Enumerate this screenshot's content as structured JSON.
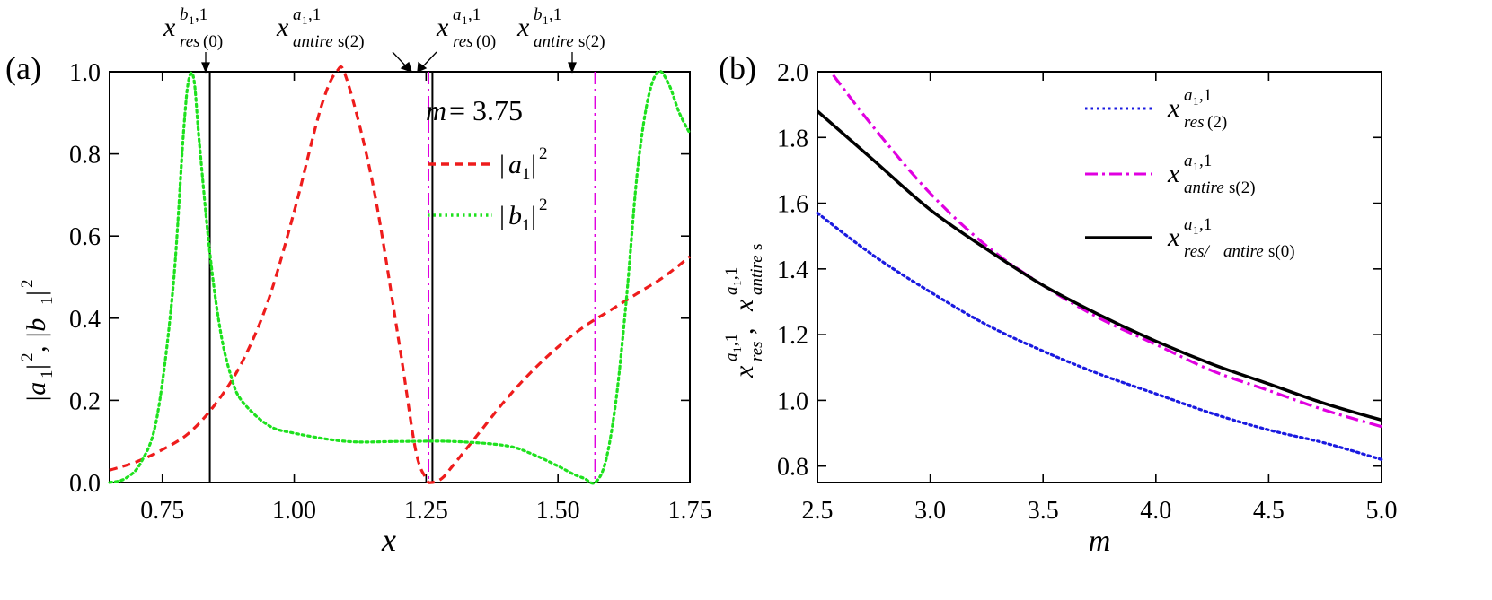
{
  "chart_data": [
    {
      "panel": "(a)",
      "type": "line",
      "xlabel": "x",
      "ylabel": "|a1|², |b1|²",
      "xlim": [
        0.65,
        1.75
      ],
      "ylim": [
        0.0,
        1.0
      ],
      "xticks": [
        "0.75",
        "1.00",
        "1.25",
        "1.50",
        "1.75"
      ],
      "yticks": [
        "0.0",
        "0.2",
        "0.4",
        "0.6",
        "0.8",
        "1.0"
      ],
      "grid": false,
      "legend_position": "top-right",
      "legend_title": "m = 3.75",
      "series": [
        {
          "name": "|a1|²",
          "style": "dashed",
          "color": "#ee1c1c",
          "x": [
            0.65,
            0.7,
            0.75,
            0.8,
            0.85,
            0.9,
            0.95,
            1.0,
            1.05,
            1.08,
            1.1,
            1.15,
            1.2,
            1.23,
            1.25,
            1.26,
            1.28,
            1.3,
            1.35,
            1.4,
            1.45,
            1.5,
            1.55,
            1.6,
            1.65,
            1.7,
            1.75
          ],
          "y": [
            0.03,
            0.05,
            0.08,
            0.12,
            0.19,
            0.29,
            0.44,
            0.66,
            0.91,
            1.0,
            0.98,
            0.72,
            0.33,
            0.08,
            0.01,
            0.0,
            0.01,
            0.04,
            0.12,
            0.2,
            0.27,
            0.33,
            0.38,
            0.42,
            0.46,
            0.5,
            0.55
          ]
        },
        {
          "name": "|b1|²",
          "style": "dotted",
          "color": "#1ee11e",
          "x": [
            0.65,
            0.68,
            0.71,
            0.74,
            0.77,
            0.79,
            0.8,
            0.81,
            0.82,
            0.84,
            0.86,
            0.88,
            0.9,
            0.95,
            1.0,
            1.1,
            1.2,
            1.3,
            1.4,
            1.45,
            1.5,
            1.53,
            1.55,
            1.57,
            1.59,
            1.61,
            1.63,
            1.65,
            1.67,
            1.69,
            1.71,
            1.73,
            1.75
          ],
          "y": [
            0.0,
            0.01,
            0.05,
            0.16,
            0.47,
            0.85,
            0.98,
            0.98,
            0.83,
            0.56,
            0.37,
            0.26,
            0.2,
            0.14,
            0.12,
            0.1,
            0.1,
            0.1,
            0.09,
            0.07,
            0.04,
            0.02,
            0.01,
            0.0,
            0.05,
            0.2,
            0.45,
            0.75,
            0.93,
            1.0,
            0.97,
            0.9,
            0.85
          ]
        }
      ],
      "markers": [
        {
          "name": "x_res(0)^{b1,1}",
          "x": 0.84,
          "color": "#000000",
          "style": "solid"
        },
        {
          "name": "x_antire s(2)^{a1,1}",
          "x": 1.255,
          "color": "#e000e0",
          "style": "dash-dot"
        },
        {
          "name": "x_res(0)^{a1,1}",
          "x": 1.262,
          "color": "#000000",
          "style": "solid"
        },
        {
          "name": "x_antire s(2)^{b1,1}",
          "x": 1.57,
          "color": "#e000e0",
          "style": "dash-dot"
        }
      ],
      "annotations": {
        "top_labels": [
          {
            "base": "x",
            "sup": "b1,1",
            "sub": "res(0)"
          },
          {
            "base": "x",
            "sup": "a1,1",
            "sub": "antire s(2)"
          },
          {
            "base": "x",
            "sup": "a1,1",
            "sub": "res(0)"
          },
          {
            "base": "x",
            "sup": "b1,1",
            "sub": "antire s(2)"
          }
        ]
      }
    },
    {
      "panel": "(b)",
      "type": "line",
      "xlabel": "m",
      "ylabel": "x_res^{a1,1}, x_antire s^{a1,1}",
      "xlim": [
        2.5,
        5.0
      ],
      "ylim": [
        0.75,
        2.0
      ],
      "xticks": [
        "2.5",
        "3.0",
        "3.5",
        "4.0",
        "4.5",
        "5.0"
      ],
      "yticks": [
        "0.8",
        "1.0",
        "1.2",
        "1.4",
        "1.6",
        "1.8",
        "2.0"
      ],
      "grid": false,
      "legend_position": "top-right",
      "series": [
        {
          "name": "x_res(2)^{a1,1}",
          "style": "dotted",
          "color": "#1a1ae0",
          "x": [
            2.5,
            2.75,
            3.0,
            3.25,
            3.5,
            3.75,
            4.0,
            4.25,
            4.5,
            4.75,
            5.0
          ],
          "y": [
            1.57,
            1.44,
            1.33,
            1.23,
            1.15,
            1.08,
            1.02,
            0.96,
            0.91,
            0.87,
            0.82
          ]
        },
        {
          "name": "x_antire s(2)^{a1,1}",
          "style": "dash-dot",
          "color": "#e000e0",
          "x": [
            2.57,
            2.75,
            3.0,
            3.25,
            3.5,
            3.75,
            4.0,
            4.25,
            4.5,
            4.75,
            5.0
          ],
          "y": [
            1.99,
            1.83,
            1.63,
            1.47,
            1.35,
            1.25,
            1.17,
            1.09,
            1.03,
            0.97,
            0.92
          ]
        },
        {
          "name": "x_res/ antire s(0)^{a1,1}",
          "style": "solid",
          "color": "#000000",
          "x": [
            2.5,
            2.75,
            3.0,
            3.25,
            3.5,
            3.75,
            4.0,
            4.25,
            4.5,
            4.75,
            5.0
          ],
          "y": [
            1.88,
            1.73,
            1.58,
            1.46,
            1.35,
            1.26,
            1.18,
            1.11,
            1.05,
            0.99,
            0.94
          ]
        }
      ]
    }
  ],
  "labels": {
    "panel_a": "(a)",
    "panel_b": "(b)",
    "legend_title_var": "m",
    "legend_title_eq": " = 3.75",
    "top_a_res": "res",
    "top_zero": "(0)",
    "top_antire": "antire",
    "top_s2": " s(2)",
    "top_x": "x",
    "top_sup_b1": "b",
    "top_sup_a1": "a",
    "top_sup_1sub": "1",
    "top_sup_tail": ",1",
    "leg_a_bar": "|",
    "leg_a_var": "a",
    "leg_a_sub": "1",
    "leg_a_bar2": "|",
    "leg_a_pow": "2",
    "leg_b_var": "b",
    "leg_b_sub": "1",
    "leg_b_pow": "2",
    "ylabel_a_part1": "|a",
    "ylabel_a_sub": "1",
    "ylabel_a_part2": "|",
    "ylabel_a_pow": "2",
    "ylabel_a_comma": ", |b",
    "ylabel_b_sub": "1",
    "ylabel_b_part2": "|",
    "ylabel_b_pow": "2",
    "xlabel_a": "x",
    "xlabel_b": "m",
    "ylabel_b_x": "x",
    "ylabel_b_res": "res",
    "ylabel_b_comma": " , ",
    "ylabel_b_antire": "antire",
    "ylabel_b_s": " s",
    "legb_res2_sub": "res",
    "legb_res2_paren": "(2)",
    "legb_antire2_sub": "antire",
    "legb_antire2_s": " s(2)",
    "legb_res0_sub1": "res/ ",
    "legb_res0_sub2": "antire",
    "legb_res0_sub3": " s(0)"
  }
}
